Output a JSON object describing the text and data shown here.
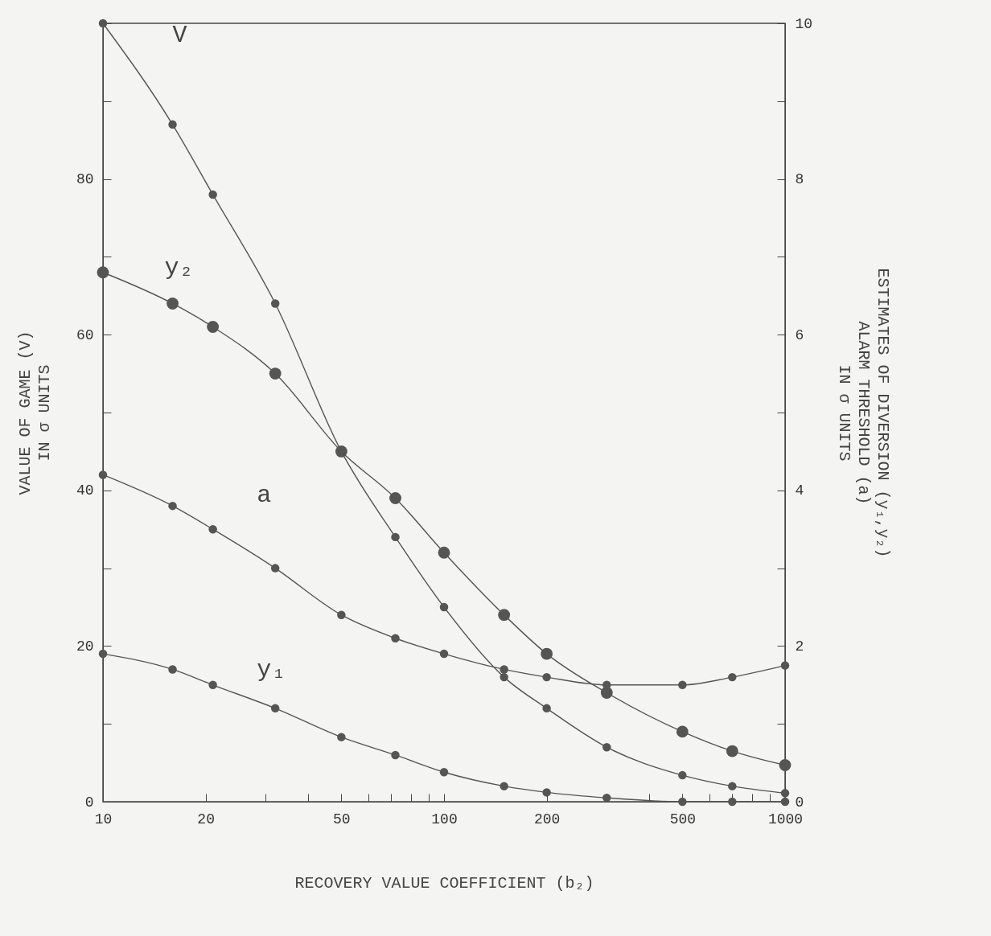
{
  "chart_data": {
    "type": "line",
    "xlabel": "RECOVERY VALUE COEFFICIENT (b₂)",
    "ylabel": "VALUE OF GAME (V)\nIN σ UNITS",
    "y2label": "ESTIMATES OF DIVERSION (y₁,y₂)\nALARM THRESHOLD (a)\nIN σ UNITS",
    "log": "x",
    "xlim": [
      10,
      1000
    ],
    "xticks": [
      10,
      20,
      {
        "value": 30,
        "label": null
      },
      {
        "value": 40,
        "label": null
      },
      50,
      {
        "value": 60,
        "label": null
      },
      {
        "value": 70,
        "label": null
      },
      {
        "value": 80,
        "label": null
      },
      {
        "value": 90,
        "label": null
      },
      100,
      200,
      {
        "value": 300,
        "label": null
      },
      {
        "value": 400,
        "label": null
      },
      500,
      {
        "value": 600,
        "label": null
      },
      {
        "value": 700,
        "label": null
      },
      {
        "value": 800,
        "label": null
      },
      {
        "value": 900,
        "label": null
      },
      1000
    ],
    "ylim": [
      0,
      100
    ],
    "yticks": [
      0,
      {
        "value": 10,
        "label": null
      },
      20,
      {
        "value": 30,
        "label": null
      },
      40,
      {
        "value": 50,
        "label": null
      },
      60,
      {
        "value": 70,
        "label": null
      },
      80,
      {
        "value": 90,
        "label": null
      },
      {
        "value": 100,
        "label": null
      }
    ],
    "y2lim": [
      0,
      10
    ],
    "y2ticks": [
      0,
      {
        "value": 1,
        "label": null
      },
      2,
      {
        "value": 3,
        "label": null
      },
      4,
      {
        "value": 5,
        "label": null
      },
      6,
      {
        "value": 7,
        "label": null
      },
      8,
      {
        "value": 9,
        "label": null
      },
      10
    ],
    "x": [
      10,
      16,
      21,
      32,
      50,
      72,
      100,
      150,
      200,
      300,
      500,
      700,
      1000
    ],
    "series": [
      {
        "name": "V",
        "color": "#555555",
        "values": [
          100,
          87,
          78,
          64,
          45,
          34,
          25,
          16,
          12,
          7,
          3.4,
          2,
          1.1
        ]
      },
      {
        "name": "y₂",
        "color": "#555555",
        "axis": "y2",
        "values": [
          6.8,
          6.4,
          6.1,
          5.5,
          4.5,
          3.9,
          3.2,
          2.4,
          1.9,
          1.4,
          0.9,
          0.65,
          0.47
        ]
      },
      {
        "name": "a",
        "color": "#555555",
        "axis": "y2",
        "values": [
          4.2,
          3.8,
          3.5,
          3.0,
          2.4,
          2.1,
          1.9,
          1.7,
          1.6,
          1.5,
          1.5,
          1.6,
          1.75
        ]
      },
      {
        "name": "y₁",
        "color": "#555555",
        "axis": "y2",
        "values": [
          1.9,
          1.7,
          1.5,
          1.2,
          0.83,
          0.6,
          0.38,
          0.2,
          0.12,
          0.05,
          0,
          0,
          0
        ]
      }
    ],
    "grid": false,
    "legend": false,
    "marker": "circle",
    "line_style": "solid"
  }
}
